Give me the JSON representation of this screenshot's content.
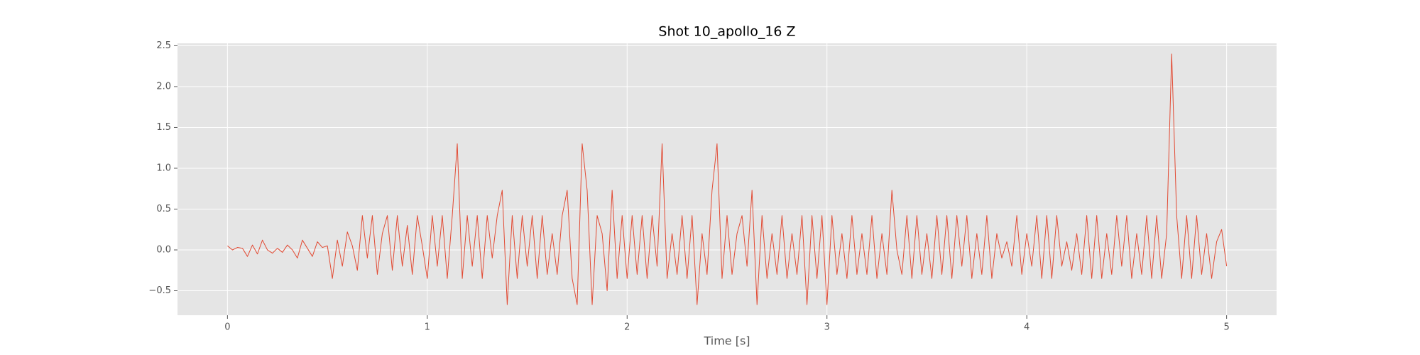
{
  "chart_data": {
    "type": "line",
    "title": "Shot 10_apollo_16 Z",
    "xlabel": "Time [s]",
    "color": "#e24a33",
    "grid": true,
    "xlim": [
      -0.25,
      5.25
    ],
    "ylim": [
      -0.8,
      2.53
    ],
    "xticks": [
      0,
      1,
      2,
      3,
      4,
      5
    ],
    "yticks": [
      {
        "value": -0.5,
        "label": "−0.5"
      },
      {
        "value": 0,
        "label": "0.0"
      },
      0.5,
      {
        "value": 1,
        "label": "1.0"
      },
      1.5,
      {
        "value": 2,
        "label": "2.0"
      },
      2.5
    ],
    "x": [
      0,
      0.025,
      0.05,
      0.075,
      0.1,
      0.125,
      0.15,
      0.175,
      0.2,
      0.225,
      0.25,
      0.275,
      0.3,
      0.325,
      0.35,
      0.375,
      0.4,
      0.425,
      0.45,
      0.475,
      0.5,
      0.525,
      0.55,
      0.575,
      0.6,
      0.625,
      0.65,
      0.675,
      0.7,
      0.725,
      0.75,
      0.775,
      0.8,
      0.825,
      0.85,
      0.875,
      0.9,
      0.925,
      0.95,
      0.975,
      1,
      1.025,
      1.05,
      1.075,
      1.1,
      1.125,
      1.15,
      1.175,
      1.2,
      1.225,
      1.25,
      1.275,
      1.3,
      1.325,
      1.35,
      1.375,
      1.4,
      1.425,
      1.45,
      1.475,
      1.5,
      1.525,
      1.55,
      1.575,
      1.6,
      1.625,
      1.65,
      1.675,
      1.7,
      1.725,
      1.75,
      1.775,
      1.8,
      1.825,
      1.85,
      1.875,
      1.9,
      1.925,
      1.95,
      1.975,
      2,
      2.025,
      2.05,
      2.075,
      2.1,
      2.125,
      2.15,
      2.175,
      2.2,
      2.225,
      2.25,
      2.275,
      2.3,
      2.325,
      2.35,
      2.375,
      2.4,
      2.425,
      2.45,
      2.475,
      2.5,
      2.525,
      2.55,
      2.575,
      2.6,
      2.625,
      2.65,
      2.675,
      2.7,
      2.725,
      2.75,
      2.775,
      2.8,
      2.825,
      2.85,
      2.875,
      2.9,
      2.925,
      2.95,
      2.975,
      3,
      3.025,
      3.05,
      3.075,
      3.1,
      3.125,
      3.15,
      3.175,
      3.2,
      3.225,
      3.25,
      3.275,
      3.3,
      3.325,
      3.35,
      3.375,
      3.4,
      3.425,
      3.45,
      3.475,
      3.5,
      3.525,
      3.55,
      3.575,
      3.6,
      3.625,
      3.65,
      3.675,
      3.7,
      3.725,
      3.75,
      3.775,
      3.8,
      3.825,
      3.85,
      3.875,
      3.9,
      3.925,
      3.95,
      3.975,
      4,
      4.025,
      4.05,
      4.075,
      4.1,
      4.125,
      4.15,
      4.175,
      4.2,
      4.225,
      4.25,
      4.275,
      4.3,
      4.325,
      4.35,
      4.375,
      4.4,
      4.425,
      4.45,
      4.475,
      4.5,
      4.525,
      4.55,
      4.575,
      4.6,
      4.625,
      4.65,
      4.675,
      4.7,
      4.725,
      4.75,
      4.775,
      4.8,
      4.825,
      4.85,
      4.875,
      4.9,
      4.925,
      4.95,
      4.975,
      5
    ],
    "values": [
      0.05,
      0.0,
      0.03,
      0.02,
      -0.08,
      0.06,
      -0.05,
      0.12,
      0.0,
      -0.04,
      0.02,
      -0.03,
      0.06,
      0.0,
      -0.1,
      0.12,
      0.02,
      -0.08,
      0.1,
      0.03,
      0.05,
      -0.35,
      0.12,
      -0.2,
      0.22,
      0.05,
      -0.25,
      0.42,
      -0.1,
      0.42,
      -0.3,
      0.2,
      0.42,
      -0.25,
      0.42,
      -0.2,
      0.3,
      -0.3,
      0.42,
      0.05,
      -0.35,
      0.42,
      -0.2,
      0.42,
      -0.35,
      0.42,
      1.3,
      -0.35,
      0.42,
      -0.2,
      0.42,
      -0.35,
      0.42,
      -0.1,
      0.42,
      0.73,
      -0.67,
      0.42,
      -0.35,
      0.42,
      -0.2,
      0.42,
      -0.35,
      0.42,
      -0.3,
      0.2,
      -0.3,
      0.42,
      0.73,
      -0.35,
      -0.67,
      1.3,
      0.73,
      -0.67,
      0.42,
      0.2,
      -0.5,
      0.73,
      -0.35,
      0.42,
      -0.35,
      0.42,
      -0.3,
      0.42,
      -0.35,
      0.42,
      -0.2,
      1.3,
      -0.35,
      0.2,
      -0.3,
      0.42,
      -0.35,
      0.42,
      -0.67,
      0.2,
      -0.3,
      0.73,
      1.3,
      -0.35,
      0.42,
      -0.3,
      0.2,
      0.42,
      -0.2,
      0.73,
      -0.67,
      0.42,
      -0.35,
      0.2,
      -0.3,
      0.42,
      -0.35,
      0.2,
      -0.3,
      0.42,
      -0.67,
      0.42,
      -0.35,
      0.42,
      -0.67,
      0.42,
      -0.3,
      0.2,
      -0.35,
      0.42,
      -0.3,
      0.2,
      -0.3,
      0.42,
      -0.35,
      0.2,
      -0.3,
      0.73,
      0.0,
      -0.3,
      0.42,
      -0.35,
      0.42,
      -0.3,
      0.2,
      -0.35,
      0.42,
      -0.3,
      0.42,
      -0.35,
      0.42,
      -0.2,
      0.42,
      -0.35,
      0.2,
      -0.3,
      0.42,
      -0.35,
      0.2,
      -0.1,
      0.1,
      -0.2,
      0.42,
      -0.3,
      0.2,
      -0.2,
      0.42,
      -0.35,
      0.42,
      -0.35,
      0.42,
      -0.2,
      0.1,
      -0.25,
      0.2,
      -0.3,
      0.42,
      -0.35,
      0.42,
      -0.35,
      0.2,
      -0.3,
      0.42,
      -0.2,
      0.42,
      -0.35,
      0.2,
      -0.3,
      0.42,
      -0.35,
      0.42,
      -0.35,
      0.2,
      2.4,
      0.42,
      -0.35,
      0.42,
      -0.35,
      0.42,
      -0.3,
      0.2,
      -0.35,
      0.1,
      0.25,
      -0.2
    ]
  }
}
